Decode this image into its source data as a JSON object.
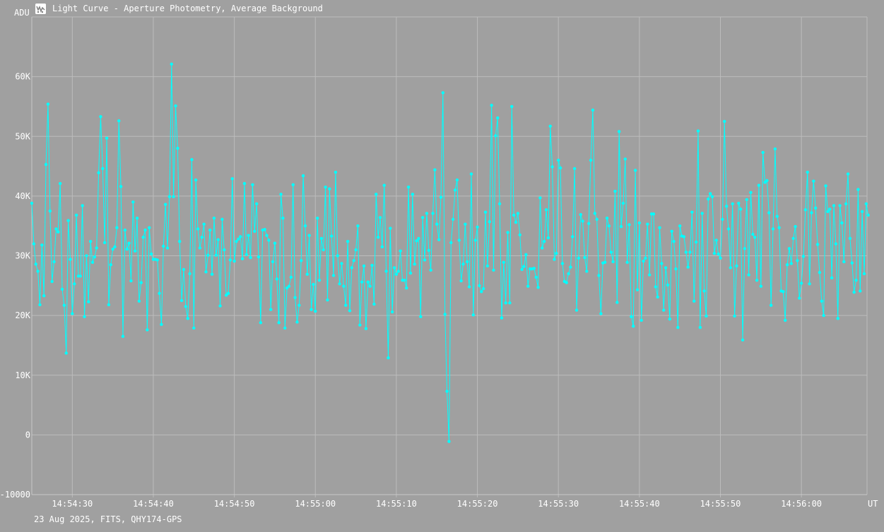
{
  "window": {
    "title": "Light Curve - Aperture Photometry, Average Background",
    "footer": "23 Aug 2025, FITS, QHY174-GPS"
  },
  "colors": {
    "background": "#a0a0a0",
    "grid": "#bcbcbc",
    "series": "#00ffff",
    "text": "#ffffff"
  },
  "icons": {
    "app": "light-curve-app-icon"
  },
  "chart_data": {
    "type": "line",
    "title": "Light Curve - Aperture Photometry, Average Background",
    "xlabel": "UT",
    "ylabel": "ADU",
    "x_ticks": [
      "14:54:30",
      "14:54:40",
      "14:54:50",
      "14:55:00",
      "14:55:10",
      "14:55:20",
      "14:55:30",
      "14:55:40",
      "14:55:50",
      "14:56:00"
    ],
    "y_ticks": [
      "-10000",
      "0",
      "10K",
      "20K",
      "30K",
      "40K",
      "50K",
      "60K"
    ],
    "xlim": [
      "14:54:25.0",
      "14:56:08.1"
    ],
    "ylim": [
      -10000,
      70000
    ],
    "grid": true,
    "legend": "none",
    "markers": true,
    "sample_interval_s": 0.25,
    "start_time": "14:54:25.0",
    "series": [
      {
        "values": [
          38800,
          32000,
          28600,
          27400,
          21800,
          31800,
          23300,
          45300,
          55400,
          37500,
          25700,
          29000,
          34500,
          34000,
          42100,
          24400,
          21700,
          13700,
          35900,
          29400,
          20300,
          25300,
          36800,
          26600,
          26600,
          38400,
          19800,
          30000,
          22300,
          32400,
          28900,
          29800,
          31300,
          43900,
          53300,
          44600,
          32200,
          49700,
          21800,
          28500,
          31100,
          31500,
          34700,
          52600,
          41600,
          16500,
          34300,
          31100,
          32100,
          25800,
          39000,
          30800,
          36300,
          22400,
          25500,
          33100,
          34300,
          17600,
          34700,
          30300,
          29400,
          29400,
          29300,
          23700,
          18500,
          31600,
          38600,
          31300,
          39900,
          62100,
          39900,
          55100,
          48000,
          32400,
          22500,
          27700,
          21500,
          19500,
          27000,
          46100,
          17900,
          42700,
          34500,
          31300,
          33100,
          35300,
          27300,
          30100,
          34300,
          26900,
          36300,
          30100,
          32700,
          21600,
          36100,
          31000,
          23400,
          23700,
          29300,
          42900,
          29100,
          32400,
          32800,
          33200,
          29500,
          42100,
          30200,
          33400,
          29700,
          41900,
          34100,
          38700,
          29800,
          18800,
          34300,
          34400,
          33400,
          32600,
          21000,
          29000,
          32100,
          26100,
          18800,
          40300,
          36300,
          17900,
          24600,
          24900,
          26400,
          41900,
          23000,
          18900,
          21700,
          29200,
          43400,
          35000,
          26900,
          33400,
          21000,
          25200,
          20700,
          36300,
          25900,
          32900,
          31000,
          41500,
          22600,
          41200,
          33300,
          26700,
          44000,
          30000,
          25300,
          28700,
          24900,
          21700,
          32400,
          20800,
          28000,
          29200,
          31000,
          35000,
          18400,
          25600,
          28300,
          17800,
          25600,
          24900,
          28400,
          21900,
          40300,
          33100,
          36400,
          31500,
          41800,
          27400,
          12900,
          34600,
          20600,
          28000,
          26900,
          27400,
          30800,
          25900,
          25900,
          24600,
          41500,
          27100,
          40300,
          28600,
          32500,
          32900,
          19800,
          36400,
          29300,
          37100,
          30900,
          27600,
          37100,
          44400,
          35300,
          32700,
          39800,
          57300,
          20200,
          7300,
          -1100,
          32200,
          36100,
          41000,
          42700,
          32600,
          25800,
          28600,
          35300,
          29000,
          24800,
          43700,
          20100,
          32600,
          34800,
          25000,
          24000,
          24500,
          37300,
          28300,
          35700,
          55200,
          27600,
          50100,
          53100,
          38700,
          19600,
          28900,
          22100,
          33900,
          22100,
          55000,
          36800,
          35600,
          37100,
          33500,
          27700,
          28200,
          30200,
          24900,
          27800,
          27800,
          27900,
          26400,
          24700,
          39700,
          31300,
          32400,
          37700,
          33000,
          51700,
          44900,
          29400,
          30400,
          46000,
          44700,
          28700,
          25700,
          25500,
          27000,
          28100,
          33200,
          44600,
          20900,
          29600,
          36900,
          35800,
          29700,
          27400,
          35400,
          46000,
          54400,
          37100,
          36100,
          26700,
          20300,
          28800,
          28900,
          36300,
          35000,
          30600,
          29000,
          40800,
          22200,
          50800,
          34900,
          38800,
          46200,
          28900,
          35200,
          19800,
          18200,
          44300,
          24300,
          35500,
          19200,
          29100,
          29600,
          35300,
          26800,
          37000,
          37000,
          24800,
          23100,
          34700,
          28700,
          20900,
          28000,
          25100,
          19400,
          34100,
          32400,
          27800,
          18000,
          35000,
          33300,
          33200,
          30600,
          28100,
          30600,
          37300,
          22400,
          32300,
          50900,
          18000,
          37100,
          24100,
          19900,
          39500,
          40400,
          39900,
          30400,
          32600,
          30300,
          29600,
          36100,
          52500,
          38300,
          34500,
          28000,
          38700,
          19900,
          28300,
          38800,
          37800,
          15900,
          31200,
          39400,
          26800,
          40600,
          33600,
          33100,
          25900,
          41800,
          24900,
          47300,
          42300,
          42600,
          37200,
          21700,
          34500,
          47900,
          36600,
          34700,
          24100,
          24000,
          19200,
          28500,
          31200,
          28700,
          32900,
          34900,
          29200,
          22900,
          25400,
          29900,
          37700,
          44000,
          25300,
          37200,
          42500,
          38000,
          31900,
          27200,
          22400,
          20000,
          41700,
          37400,
          37800,
          26300,
          38400,
          32000,
          19500,
          38400,
          35500,
          29000,
          38700,
          43700,
          32900,
          28800,
          23900,
          25900,
          41100,
          24100,
          37400,
          27000,
          38700,
          36800
        ]
      }
    ]
  }
}
